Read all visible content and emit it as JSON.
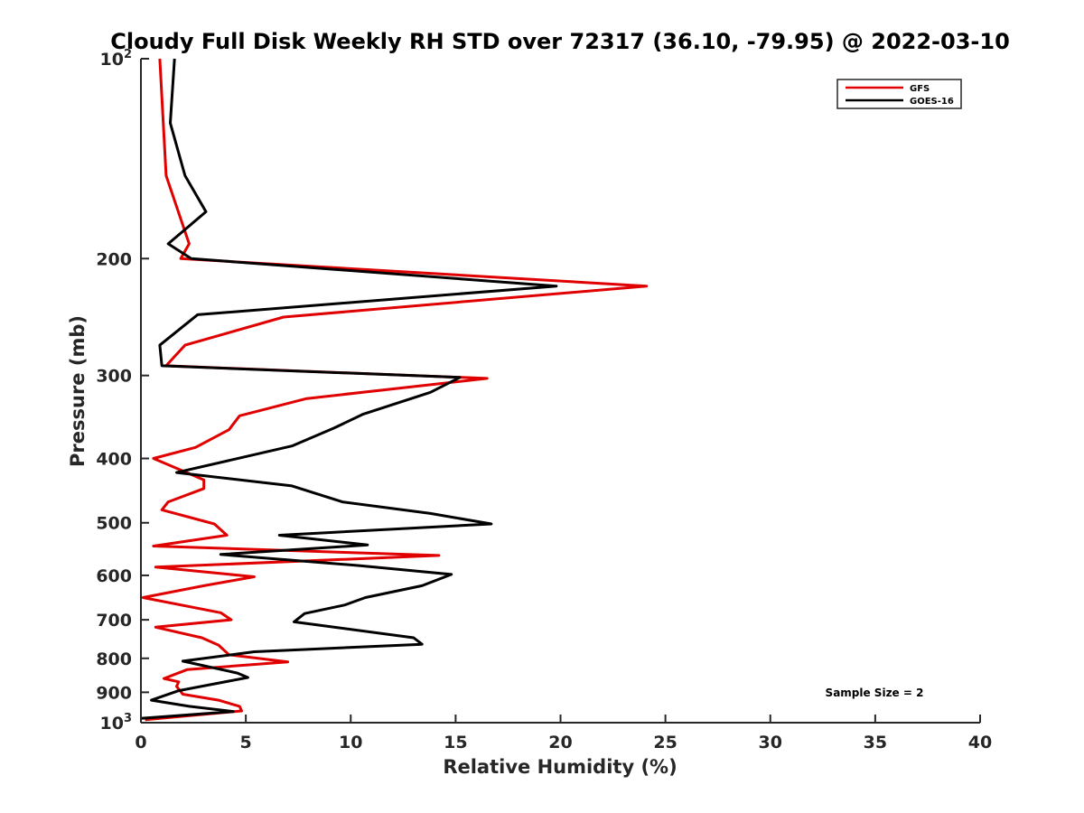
{
  "chart_data": {
    "type": "line",
    "title": "Cloudy Full Disk Weekly RH STD over 72317 (36.10, -79.95) @ 2022-03-10",
    "xlabel": "Relative Humidity (%)",
    "ylabel": "Pressure (mb)",
    "xlim": [
      0,
      40
    ],
    "ylim": [
      100,
      1000
    ],
    "y_scale": "log",
    "y_reversed": true,
    "grid": false,
    "legend_position": "top-right",
    "x_ticks": [
      "0",
      "5",
      "10",
      "15",
      "20",
      "25",
      "30",
      "35",
      "40"
    ],
    "y_ticks": [
      {
        "value": 100,
        "base": "10",
        "exp": "2"
      },
      {
        "value": 200,
        "label": "200"
      },
      {
        "value": 300,
        "label": "300"
      },
      {
        "value": 400,
        "label": "400"
      },
      {
        "value": 500,
        "label": "500"
      },
      {
        "value": 600,
        "label": "600"
      },
      {
        "value": 700,
        "label": "700"
      },
      {
        "value": 800,
        "label": "800"
      },
      {
        "value": 900,
        "label": "900"
      },
      {
        "value": 1000,
        "base": "10",
        "exp": "3"
      }
    ],
    "series": [
      {
        "name": "GFS",
        "color": "#e00000",
        "points": [
          [
            0.9,
            100
          ],
          [
            1.2,
            150
          ],
          [
            2.3,
            190
          ],
          [
            1.9,
            200
          ],
          [
            24.1,
            220
          ],
          [
            6.8,
            245
          ],
          [
            2.1,
            270
          ],
          [
            1.2,
            290
          ],
          [
            16.5,
            303
          ],
          [
            7.9,
            325
          ],
          [
            4.7,
            345
          ],
          [
            4.2,
            362
          ],
          [
            2.6,
            385
          ],
          [
            0.6,
            400
          ],
          [
            3.0,
            431
          ],
          [
            3.0,
            444
          ],
          [
            1.3,
            465
          ],
          [
            1.0,
            478
          ],
          [
            3.5,
            502
          ],
          [
            4.1,
            522
          ],
          [
            0.6,
            542
          ],
          [
            14.2,
            560
          ],
          [
            0.7,
            583
          ],
          [
            5.4,
            603
          ],
          [
            3.0,
            622
          ],
          [
            0.1,
            648
          ],
          [
            3.8,
            683
          ],
          [
            4.3,
            700
          ],
          [
            0.7,
            718
          ],
          [
            2.9,
            745
          ],
          [
            3.7,
            764
          ],
          [
            4.2,
            790
          ],
          [
            7.0,
            810
          ],
          [
            2.2,
            832
          ],
          [
            1.1,
            858
          ],
          [
            1.8,
            868
          ],
          [
            1.7,
            882
          ],
          [
            2.0,
            906
          ],
          [
            3.7,
            925
          ],
          [
            4.7,
            945
          ],
          [
            4.8,
            960
          ],
          [
            0.2,
            990
          ]
        ]
      },
      {
        "name": "GOES-16",
        "color": "#000000",
        "points": [
          [
            1.6,
            100
          ],
          [
            1.4,
            125
          ],
          [
            2.1,
            150
          ],
          [
            3.1,
            170
          ],
          [
            1.3,
            190
          ],
          [
            2.4,
            200
          ],
          [
            19.8,
            220
          ],
          [
            2.7,
            243
          ],
          [
            0.9,
            270
          ],
          [
            1.0,
            290
          ],
          [
            15.2,
            302
          ],
          [
            13.8,
            318
          ],
          [
            10.6,
            343
          ],
          [
            9.2,
            360
          ],
          [
            7.2,
            383
          ],
          [
            1.7,
            420
          ],
          [
            7.2,
            440
          ],
          [
            9.6,
            465
          ],
          [
            13.8,
            484
          ],
          [
            16.7,
            502
          ],
          [
            6.6,
            522
          ],
          [
            10.8,
            540
          ],
          [
            3.8,
            558
          ],
          [
            10.4,
            580
          ],
          [
            14.8,
            598
          ],
          [
            13.4,
            622
          ],
          [
            10.7,
            648
          ],
          [
            9.7,
            665
          ],
          [
            7.8,
            685
          ],
          [
            7.3,
            705
          ],
          [
            13.0,
            745
          ],
          [
            13.4,
            762
          ],
          [
            5.4,
            782
          ],
          [
            2.0,
            808
          ],
          [
            4.6,
            842
          ],
          [
            5.1,
            855
          ],
          [
            1.8,
            895
          ],
          [
            0.5,
            925
          ],
          [
            2.3,
            945
          ],
          [
            4.4,
            962
          ],
          [
            0.0,
            985
          ]
        ]
      }
    ],
    "annotation": "Sample Size = 2"
  }
}
